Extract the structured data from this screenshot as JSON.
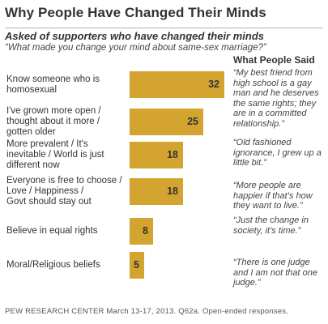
{
  "title": "Why People Have Changed Their Minds",
  "subtitle": "Asked of supporters who have changed their minds",
  "question": "“What made you change your mind about same-sex marriage?”",
  "quotes_header": "What People Said",
  "source": "PEW RESEARCH CENTER March 13-17, 2013. Q62a. Open-ended responses.",
  "colors": {
    "bar": "#d4a431",
    "rule": "#b3b3b3"
  },
  "chart_data": {
    "type": "bar",
    "orientation": "horizontal",
    "categories": [
      "Know someone who is homosexual",
      "I've grown more open / thought about it more / gotten older",
      "More prevalent / It's inevitable / World is just different now",
      "Everyone is free to choose / Love / Happiness / Govt should stay out",
      "Believe in equal rights",
      "Moral/Religious beliefs"
    ],
    "values": [
      32,
      25,
      18,
      18,
      8,
      5
    ],
    "value_labels": [
      "32",
      "25",
      "18",
      "18",
      "8",
      "5"
    ],
    "xlim": [
      0,
      32
    ],
    "grid": false,
    "legend": "none",
    "quotes": [
      "“My best friend from high school is a gay man and he deserves the same rights; they are in a committed relationship.”",
      "“Old fashioned ignorance, I grew up a little bit.”",
      "“More people are happier if that’s how they want to live.”",
      "“Just the change in society, it’s time.”",
      "“There is one judge and I am not that one judge.”"
    ]
  },
  "category_lines": [
    [
      "Know someone who is",
      "homosexual"
    ],
    [
      "I've grown more open /",
      "thought about it more /",
      "gotten older"
    ],
    [
      "More prevalent / It's",
      "inevitable / World is just",
      "different now"
    ],
    [
      "Everyone is free to choose /",
      "Love / Happiness /",
      "Govt should stay out"
    ],
    [
      "Believe in equal rights"
    ],
    [
      "Moral/Religious beliefs"
    ]
  ]
}
